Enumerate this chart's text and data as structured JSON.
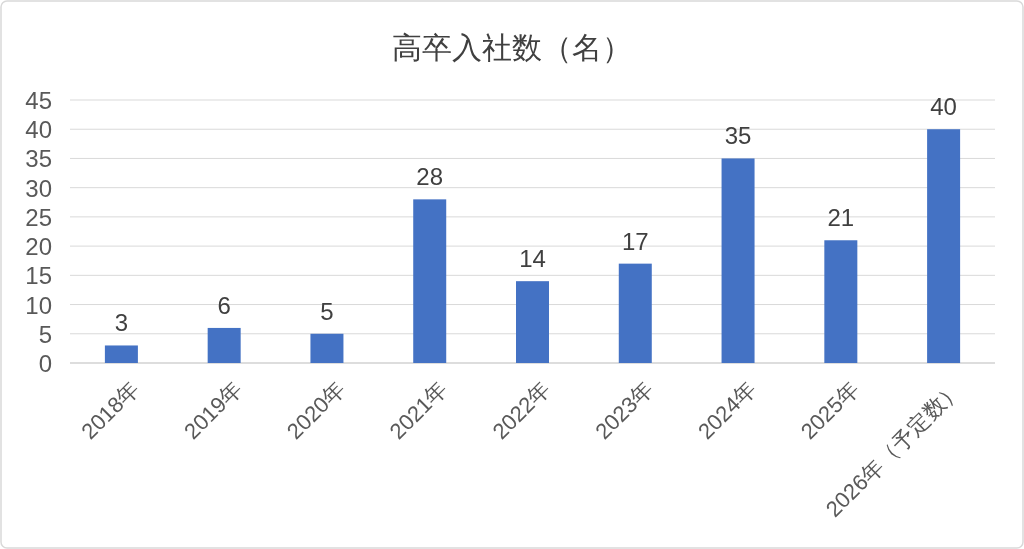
{
  "chart_data": {
    "type": "bar",
    "title": "高卒入社数（名）",
    "categories": [
      "2018年",
      "2019年",
      "2020年",
      "2021年",
      "2022年",
      "2023年",
      "2024年",
      "2025年",
      "2026年（予定数）"
    ],
    "values": [
      3,
      6,
      5,
      28,
      14,
      17,
      35,
      21,
      40
    ],
    "color": "#4472c4",
    "ylim": [
      0,
      45
    ],
    "yticks": [
      0,
      5,
      10,
      15,
      20,
      25,
      30,
      35,
      40,
      45
    ],
    "grid": "y",
    "data_labels": true
  }
}
